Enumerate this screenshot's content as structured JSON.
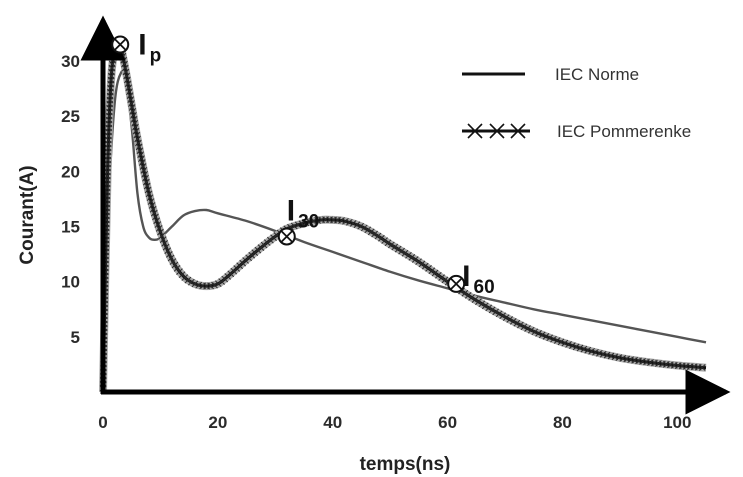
{
  "chart_data": {
    "type": "line",
    "xlabel": "temps(ns)",
    "ylabel": "Courant(A)",
    "xlim": [
      0,
      105
    ],
    "ylim": [
      0,
      33
    ],
    "x_ticks": [
      0,
      20,
      40,
      60,
      80,
      100
    ],
    "y_ticks": [
      5,
      10,
      15,
      20,
      25,
      30
    ],
    "x_tick_labels": [
      "0",
      "20",
      "40",
      "60",
      "80",
      "100"
    ],
    "y_tick_labels": [
      "5",
      "10",
      "15",
      "20",
      "25",
      "30"
    ],
    "grid": false,
    "legend_position": "top-right",
    "series": [
      {
        "name": "IEC Norme",
        "color": "#555555",
        "style": "solid-line",
        "x": [
          0,
          0.8,
          2,
          3.2,
          4,
          5,
          6,
          7,
          8,
          9,
          10,
          12,
          14,
          16,
          18,
          20,
          25,
          30,
          35,
          40,
          45,
          50,
          55,
          60,
          65,
          70,
          75,
          80,
          85,
          90,
          95,
          100,
          105
        ],
        "y": [
          0,
          15,
          26,
          29,
          28,
          24,
          18,
          15,
          14,
          13.8,
          14,
          15,
          16,
          16.4,
          16.5,
          16.2,
          15.5,
          14.6,
          13.6,
          12.7,
          11.8,
          10.9,
          10.1,
          9.4,
          8.7,
          8.1,
          7.5,
          7,
          6.5,
          6,
          5.5,
          5,
          4.5
        ]
      },
      {
        "name": "IEC Pommerenke",
        "color": "#111111",
        "style": "line-with-x-markers",
        "x": [
          0,
          0.8,
          1.5,
          2.5,
          3,
          4,
          5,
          6,
          8,
          10,
          12,
          14,
          16,
          18,
          20,
          22,
          25,
          28,
          30,
          32,
          35,
          38,
          40,
          42,
          45,
          48,
          50,
          55,
          60,
          65,
          70,
          75,
          80,
          85,
          90,
          95,
          100,
          105
        ],
        "y": [
          0,
          20,
          29,
          31.5,
          31.5,
          29,
          26,
          23,
          18,
          14.5,
          12,
          10.5,
          9.8,
          9.6,
          9.8,
          10.6,
          12,
          13.3,
          14.1,
          14.8,
          15.3,
          15.6,
          15.6,
          15.5,
          15,
          14.1,
          13.4,
          11.8,
          10,
          8.3,
          6.8,
          5.5,
          4.5,
          3.7,
          3.1,
          2.7,
          2.4,
          2.2
        ]
      }
    ],
    "annotations": [
      {
        "main": "I",
        "sub": "p",
        "x": 3,
        "y": 31.5
      },
      {
        "main": "I",
        "sub": "30",
        "x": 32,
        "y": 14.1
      },
      {
        "main": "I",
        "sub": "60",
        "x": 61.5,
        "y": 9.8
      }
    ]
  }
}
